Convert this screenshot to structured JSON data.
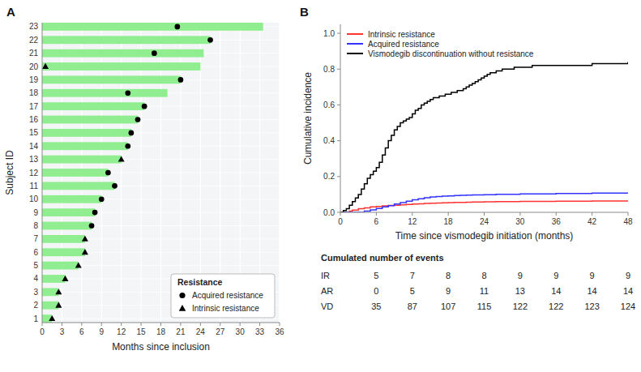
{
  "chart_data": [
    {
      "type": "bar",
      "orientation": "horizontal",
      "title": "A",
      "x_label": "Months since inclusion",
      "y_label": "Subject ID",
      "categories": [
        1,
        2,
        3,
        4,
        5,
        6,
        7,
        8,
        9,
        10,
        11,
        12,
        13,
        14,
        15,
        16,
        17,
        18,
        19,
        20,
        21,
        22,
        23
      ],
      "series": [
        {
          "type": "bar",
          "color": "#90EE90",
          "values": [
            1.5,
            2.5,
            2.5,
            3.5,
            5.5,
            6.5,
            6.5,
            7.5,
            8.0,
            9.0,
            11.0,
            10.0,
            12.0,
            13.0,
            13.5,
            14.5,
            15.5,
            19.0,
            21.0,
            24.0,
            24.5,
            25.5,
            33.5
          ]
        },
        {
          "name": "Acquired resistance",
          "type": "scatter",
          "marker": "circle",
          "color": "#000000",
          "values": [
            null,
            null,
            null,
            null,
            null,
            null,
            null,
            7.5,
            8.0,
            9.0,
            11.0,
            10.0,
            null,
            13.0,
            13.5,
            14.5,
            15.5,
            13.0,
            21.0,
            null,
            17.0,
            25.5,
            20.5
          ]
        },
        {
          "name": "Intrinsic resistance",
          "type": "scatter",
          "marker": "triangle",
          "color": "#000000",
          "values": [
            1.5,
            2.5,
            2.5,
            3.5,
            5.5,
            6.5,
            6.5,
            null,
            null,
            null,
            null,
            null,
            12.0,
            null,
            null,
            null,
            null,
            null,
            null,
            0.5,
            null,
            null,
            null
          ]
        }
      ],
      "xlim": [
        0,
        36
      ],
      "xticks": [
        0,
        3,
        6,
        9,
        12,
        15,
        18,
        21,
        24,
        27,
        30,
        33,
        36
      ],
      "grid": true,
      "legend": "lower right",
      "legend_title": "Resistance"
    },
    {
      "type": "step",
      "title": "B",
      "x_label": "Time since vismodegib initiation (months)",
      "y_label": "Cumulative incidence",
      "series": [
        {
          "name": "Intrinsic resistance",
          "color": "#FF3333",
          "x": [
            0,
            1.5,
            2,
            3,
            4,
            5,
            6,
            7,
            8,
            9,
            10,
            11,
            12,
            13,
            14,
            15,
            16,
            17,
            18,
            19,
            20,
            21,
            22,
            24,
            26,
            30,
            36,
            42,
            48
          ],
          "values": [
            0,
            0.007,
            0.013,
            0.02,
            0.025,
            0.03,
            0.033,
            0.036,
            0.038,
            0.04,
            0.042,
            0.044,
            0.046,
            0.048,
            0.05,
            0.051,
            0.052,
            0.053,
            0.054,
            0.055,
            0.056,
            0.057,
            0.058,
            0.059,
            0.06,
            0.061,
            0.062,
            0.063,
            0.064
          ]
        },
        {
          "name": "Acquired resistance",
          "color": "#3333FF",
          "x": [
            0,
            3,
            4,
            5,
            6,
            7,
            8,
            9,
            10,
            11,
            12,
            13,
            14,
            15,
            16,
            17,
            18,
            19,
            20,
            21,
            22,
            24,
            26,
            30,
            36,
            42,
            48
          ],
          "values": [
            0,
            0.0,
            0.007,
            0.014,
            0.022,
            0.03,
            0.037,
            0.046,
            0.054,
            0.062,
            0.07,
            0.076,
            0.082,
            0.086,
            0.088,
            0.09,
            0.092,
            0.094,
            0.095,
            0.096,
            0.097,
            0.099,
            0.101,
            0.103,
            0.105,
            0.107,
            0.108
          ]
        },
        {
          "name": "Vismodegib discontinuation without resistance",
          "color": "#000000",
          "x": [
            0,
            0.5,
            1,
            1.5,
            2,
            2.5,
            3,
            3.5,
            4,
            4.5,
            5,
            5.5,
            6,
            6.5,
            7,
            7.5,
            8,
            8.5,
            9,
            9.5,
            10,
            10.5,
            11,
            11.5,
            12,
            12.5,
            13,
            13.5,
            14,
            14.5,
            15,
            15.5,
            16,
            16.5,
            17,
            17.5,
            18,
            18.5,
            19,
            19.5,
            20,
            20.5,
            21,
            21.5,
            22,
            22.5,
            23,
            23.5,
            24,
            24.5,
            25,
            26,
            27,
            28,
            29,
            30,
            32,
            36,
            42,
            48
          ],
          "values": [
            0,
            0.01,
            0.02,
            0.04,
            0.06,
            0.08,
            0.1,
            0.13,
            0.16,
            0.19,
            0.21,
            0.23,
            0.25,
            0.28,
            0.32,
            0.36,
            0.4,
            0.43,
            0.46,
            0.48,
            0.5,
            0.51,
            0.52,
            0.53,
            0.55,
            0.57,
            0.58,
            0.6,
            0.61,
            0.62,
            0.63,
            0.64,
            0.64,
            0.65,
            0.65,
            0.66,
            0.66,
            0.67,
            0.67,
            0.68,
            0.68,
            0.69,
            0.7,
            0.71,
            0.72,
            0.73,
            0.74,
            0.75,
            0.76,
            0.77,
            0.78,
            0.79,
            0.8,
            0.8,
            0.81,
            0.81,
            0.82,
            0.82,
            0.83,
            0.84
          ]
        }
      ],
      "xlim": [
        0,
        48
      ],
      "xticks": [
        0,
        6,
        12,
        18,
        24,
        30,
        36,
        42,
        48
      ],
      "ylim": [
        0,
        1.05
      ],
      "yticks": [
        {
          "value": 0.0,
          "label": "0.0"
        },
        0.2,
        0.4,
        0.6,
        0.8,
        {
          "value": 1.0,
          "label": "1.0"
        }
      ],
      "grid": false,
      "legend": "upper left"
    },
    {
      "type": "table",
      "title": "Cumulated number of events",
      "x": [
        6,
        12,
        18,
        24,
        30,
        36,
        42,
        48
      ],
      "series": [
        {
          "name": "IR",
          "values": [
            5,
            7,
            8,
            8,
            9,
            9,
            9,
            9
          ]
        },
        {
          "name": "AR",
          "values": [
            0,
            5,
            9,
            11,
            13,
            14,
            14,
            14
          ]
        },
        {
          "name": "VD",
          "values": [
            35,
            87,
            107,
            115,
            122,
            122,
            123,
            124
          ]
        }
      ]
    }
  ]
}
